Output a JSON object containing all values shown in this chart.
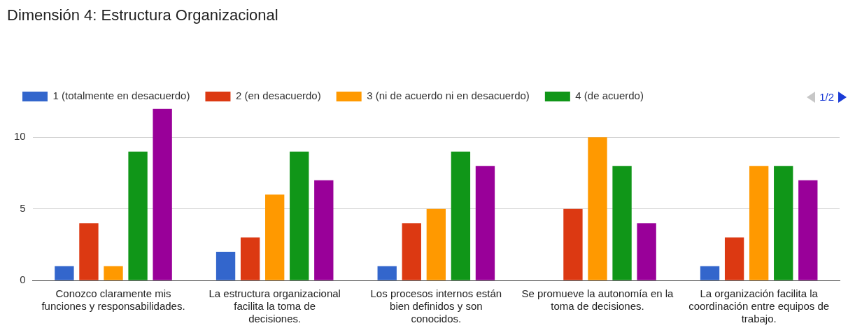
{
  "chart_data": {
    "type": "bar",
    "title": "Dimensión 4: Estructura Organizacional",
    "categories": [
      "Conozco claramente mis funciones y responsabilidades.",
      "La estructura organizacional facilita la toma de decisiones.",
      "Los procesos internos están bien definidos y son conocidos.",
      "Se promueve la autonomía en la toma de decisiones.",
      "La organización facilita la coordinación entre equipos de trabajo."
    ],
    "series": [
      {
        "name": "1 (totalmente en desacuerdo)",
        "color": "#3366cc",
        "values": [
          1,
          2,
          1,
          0,
          1
        ]
      },
      {
        "name": "2 (en desacuerdo)",
        "color": "#dc3912",
        "values": [
          4,
          3,
          4,
          5,
          3
        ]
      },
      {
        "name": "3 (ni de acuerdo ni en desacuerdo)",
        "color": "#ff9900",
        "values": [
          1,
          6,
          5,
          10,
          8
        ]
      },
      {
        "name": "4 (de acuerdo)",
        "color": "#109618",
        "values": [
          9,
          9,
          9,
          8,
          8
        ]
      },
      {
        "color": "#990099",
        "values": [
          12,
          7,
          8,
          4,
          7
        ]
      }
    ],
    "ylim": [
      0,
      12
    ],
    "yticks": [
      0,
      5,
      10
    ],
    "grid": "y",
    "legend": "top",
    "annotations": [
      "1/2"
    ]
  }
}
